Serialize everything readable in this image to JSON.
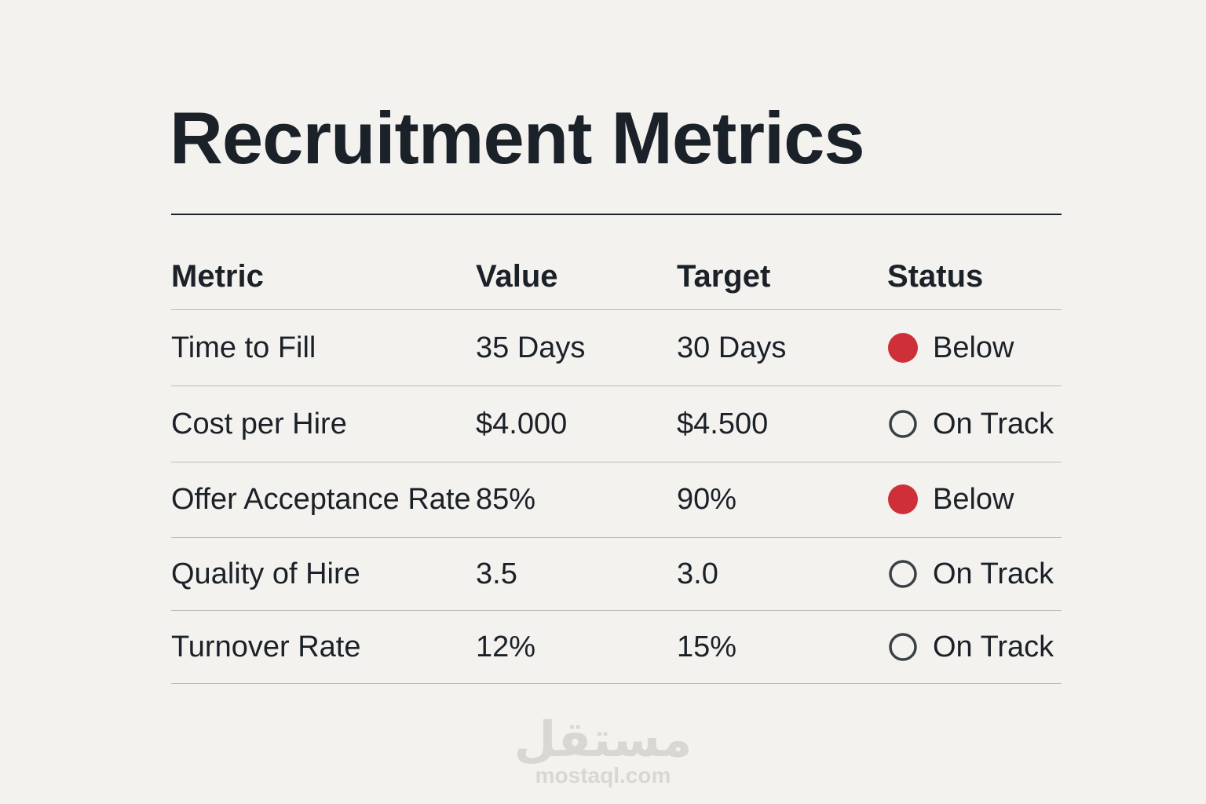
{
  "title": "Recruitment Metrics",
  "table": {
    "headers": [
      "Metric",
      "Value",
      "Target",
      "Status"
    ],
    "rows": [
      {
        "metric": "Time to Fill",
        "value": "35 Days",
        "target": "30 Days",
        "status": "Below",
        "indicator_fill": "#cf2f38"
      },
      {
        "metric": "Cost per Hire",
        "value": "$4.000",
        "target": "$4.500",
        "status": "On Track",
        "indicator_fill": "none"
      },
      {
        "metric": "Offer Acceptance Rate",
        "value": "85%",
        "target": "90%",
        "status": "Below",
        "indicator_fill": "#cf2f38"
      },
      {
        "metric": "Quality of Hire",
        "value": "3.5",
        "target": "3.0",
        "status": "On Track",
        "indicator_fill": "none"
      },
      {
        "metric": "Turnover Rate",
        "value": "12%",
        "target": "15%",
        "status": "On Track",
        "indicator_fill": "none"
      }
    ]
  },
  "watermark": {
    "arabic": "مستقل",
    "latin": "mostaql.com"
  }
}
